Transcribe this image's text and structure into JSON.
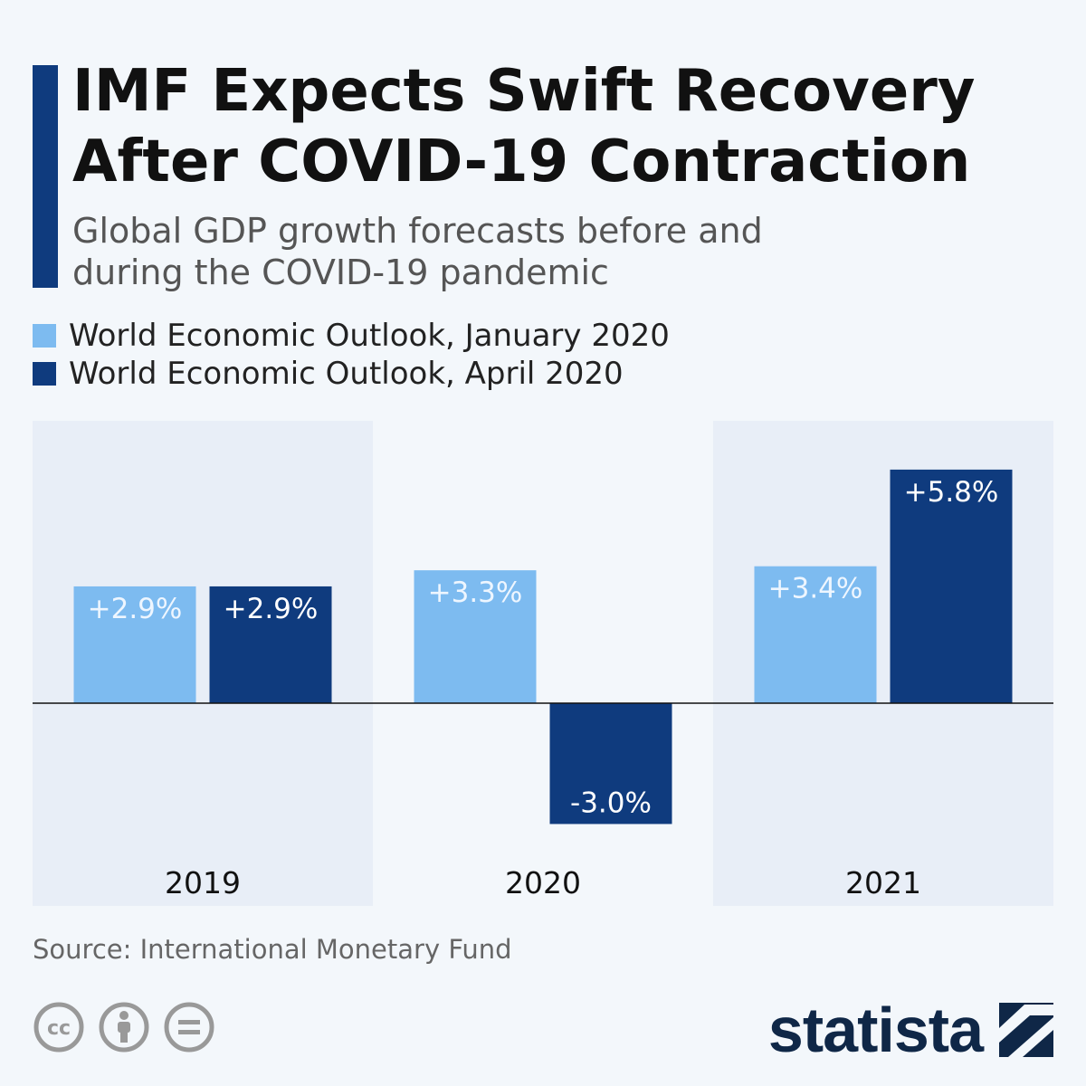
{
  "header": {
    "title_line1": "IMF Expects Swift Recovery",
    "title_line2": "After COVID-19 Contraction",
    "subtitle_line1": "Global GDP growth forecasts before and",
    "subtitle_line2": "during the COVID-19 pandemic"
  },
  "colors": {
    "accent": "#0f3b7e",
    "january": "#7dbbf0",
    "april": "#0f3b7e",
    "panel_shaded": "#e8eef7",
    "background": "#f3f7fb"
  },
  "footer": {
    "source": "Source: International Monetary Fund",
    "brand": "statista",
    "license_icons": [
      "cc-icon",
      "attribution-icon",
      "no-derivatives-icon"
    ]
  },
  "chart_data": {
    "type": "bar",
    "title": "IMF Expects Swift Recovery After COVID-19 Contraction",
    "subtitle": "Global GDP growth forecasts before and during the COVID-19 pandemic",
    "xlabel": "",
    "ylabel": "",
    "ylim": [
      -4,
      7
    ],
    "grid": false,
    "legend_position": "top-left",
    "categories": [
      "2019",
      "2020",
      "2021"
    ],
    "series": [
      {
        "name": "World Economic Outlook, January 2020",
        "values": [
          2.9,
          3.3,
          3.4
        ],
        "labels": [
          "+2.9%",
          "+3.3%",
          "+3.4%"
        ]
      },
      {
        "name": "World Economic Outlook, April 2020",
        "values": [
          2.9,
          -3.0,
          5.8
        ],
        "labels": [
          "+2.9%",
          "-3.0%",
          "+5.8%"
        ]
      }
    ]
  }
}
